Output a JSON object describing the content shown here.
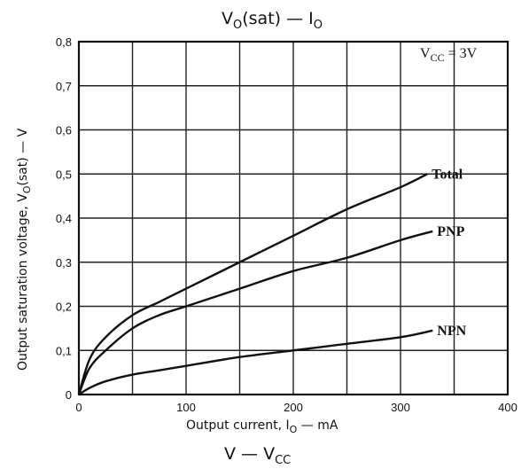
{
  "chart_data": {
    "type": "line",
    "title": {
      "main": "V",
      "sub": "O",
      "rest": "(sat) — I",
      "rest_sub": "O"
    },
    "ylabel": {
      "text": "Output saturation voltage,  V",
      "sub": "O",
      "rest": "(sat)  — V"
    },
    "xlabel": {
      "text": "Output current,  I",
      "sub": "O",
      "rest": " — mA"
    },
    "subtitle": {
      "text": "V — V",
      "sub": "CC"
    },
    "condition": {
      "text": "V",
      "sub": "CC",
      "rest": " = 3V"
    },
    "xlim": [
      0,
      400
    ],
    "ylim": [
      0,
      0.8
    ],
    "x_ticks": [
      "0",
      "100",
      "200",
      "300",
      "400"
    ],
    "y_ticks": [
      "0",
      "0,1",
      "0,2",
      "0,3",
      "0,4",
      "0,5",
      "0,6",
      "0,7",
      "0,8"
    ],
    "grid": true,
    "series": [
      {
        "name": "Total",
        "x": [
          0,
          10,
          25,
          50,
          75,
          100,
          150,
          200,
          250,
          300,
          325
        ],
        "y": [
          0,
          0.08,
          0.13,
          0.18,
          0.21,
          0.24,
          0.3,
          0.36,
          0.42,
          0.47,
          0.5
        ]
      },
      {
        "name": "PNP",
        "x": [
          0,
          10,
          25,
          50,
          75,
          100,
          150,
          200,
          250,
          300,
          330
        ],
        "y": [
          0,
          0.06,
          0.1,
          0.15,
          0.18,
          0.2,
          0.24,
          0.28,
          0.31,
          0.35,
          0.37
        ]
      },
      {
        "name": "NPN",
        "x": [
          0,
          10,
          25,
          50,
          75,
          100,
          150,
          200,
          250,
          300,
          330
        ],
        "y": [
          0,
          0.015,
          0.03,
          0.045,
          0.055,
          0.065,
          0.085,
          0.1,
          0.115,
          0.13,
          0.145
        ]
      }
    ]
  }
}
